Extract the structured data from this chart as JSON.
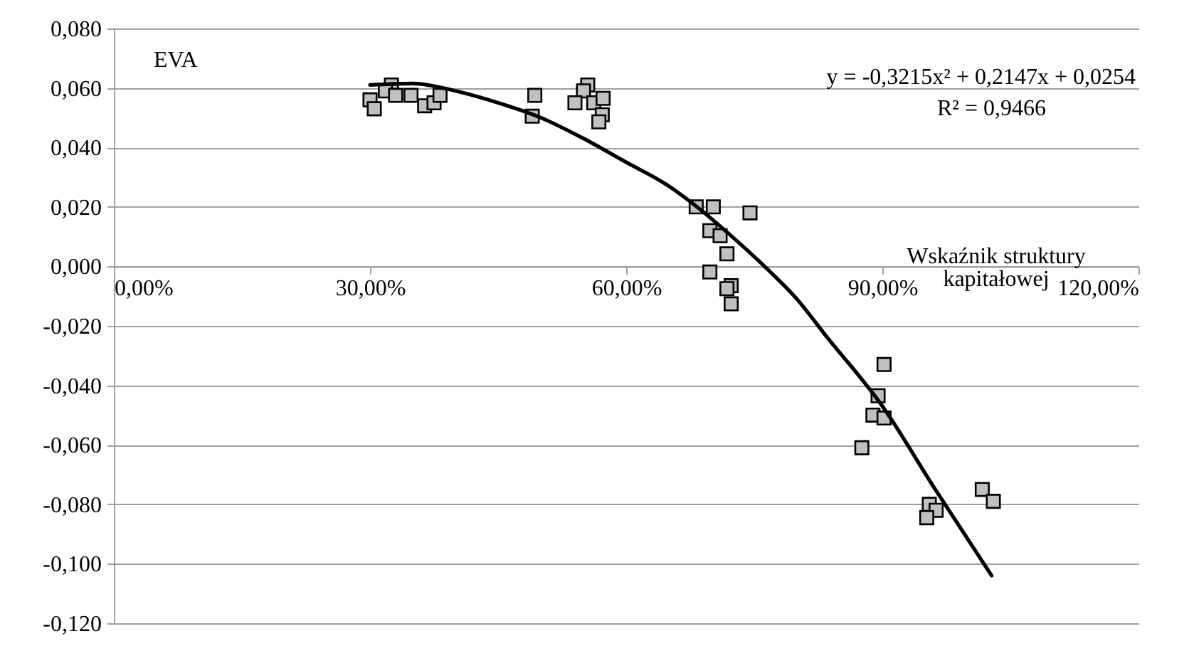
{
  "chart_data": {
    "type": "scatter",
    "ylabel": "EVA",
    "xlabel": "Wskaźnik struktury kapitałowej",
    "marker": "square",
    "grid": "y",
    "annotations": [
      "y = -0,3215x² + 0,2147x + 0,0254",
      "R² = 0,9466"
    ],
    "xlim": [
      0,
      120
    ],
    "xticks": [
      {
        "value": 0,
        "label": "0,00%"
      },
      {
        "value": 30,
        "label": "30,00%"
      },
      {
        "value": 60,
        "label": "60,00%"
      },
      {
        "value": 90,
        "label": "90,00%"
      },
      {
        "value": 120,
        "label": "120,00%"
      }
    ],
    "ylim": [
      -0.12,
      0.08
    ],
    "yticks": [
      {
        "value": -0.12,
        "label": "-0,120"
      },
      {
        "value": -0.1,
        "label": "-0,100"
      },
      {
        "value": -0.08,
        "label": "-0,080"
      },
      {
        "value": -0.06,
        "label": "-0,060"
      },
      {
        "value": -0.04,
        "label": "-0,040"
      },
      {
        "value": -0.02,
        "label": "-0,020"
      },
      {
        "value": 0,
        "label": "0,000"
      },
      {
        "value": 0.02,
        "label": "0,020"
      },
      {
        "value": 0.04,
        "label": "0,040"
      },
      {
        "value": 0.06,
        "label": "0,060"
      },
      {
        "value": 0.08,
        "label": "0,080"
      }
    ],
    "series": [
      {
        "color": "#c0c0c0",
        "x": [
          30.0,
          30.5,
          32.5,
          31.8,
          33.0,
          34.8,
          36.4,
          37.5,
          38.2,
          49.3,
          49.0,
          55.5,
          55.0,
          54.0,
          56.2,
          57.3,
          57.2,
          56.8,
          68.2,
          70.2,
          74.5,
          69.8,
          71.0,
          71.8,
          69.8,
          72.3,
          71.8,
          72.3,
          90.2,
          89.5,
          88.9,
          90.2,
          87.6,
          101.7,
          103.0,
          95.5,
          96.3,
          95.2
        ],
        "values": [
          0.056,
          0.053,
          0.061,
          0.059,
          0.0575,
          0.0575,
          0.054,
          0.055,
          0.0575,
          0.0575,
          0.0505,
          0.061,
          0.059,
          0.055,
          0.055,
          0.0565,
          0.051,
          0.0486,
          0.02,
          0.02,
          0.018,
          0.012,
          0.0103,
          0.0042,
          -0.0019,
          -0.0065,
          -0.0075,
          -0.0126,
          -0.033,
          -0.0435,
          -0.05,
          -0.051,
          -0.061,
          -0.075,
          -0.079,
          -0.08,
          -0.082,
          -0.0845
        ]
      },
      {
        "type": "line",
        "marker": "none",
        "color": "#000000",
        "x": [
          30,
          35,
          40,
          45,
          50,
          55,
          60,
          65,
          68.3,
          72,
          76.2,
          80,
          83.3,
          90,
          96.2,
          102.8
        ],
        "values": [
          0.061,
          0.0615,
          0.059,
          0.055,
          0.05,
          0.043,
          0.035,
          0.027,
          0.02,
          0.011,
          0,
          -0.011,
          -0.023,
          -0.047,
          -0.075,
          -0.104
        ]
      }
    ]
  }
}
